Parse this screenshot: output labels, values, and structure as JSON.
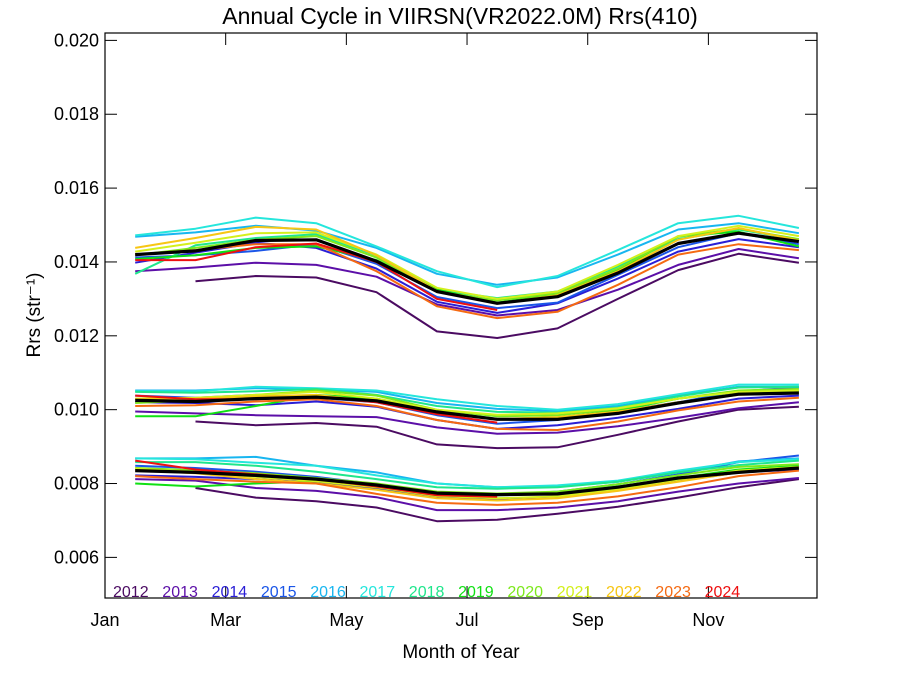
{
  "chart_data": {
    "type": "line",
    "title": "Annual Cycle in VIIRSN(VR2022.0M) Rrs(410)",
    "xlabel": "Month of Year",
    "ylabel": "Rrs (str⁻¹)",
    "xlim": [
      1,
      12.8
    ],
    "ylim": [
      0.0049,
      0.0202
    ],
    "grid": false,
    "legend_position": "bottom-left",
    "x_ticks": [
      {
        "value": 1,
        "label": "Jan"
      },
      {
        "value": 3,
        "label": "Mar"
      },
      {
        "value": 5,
        "label": "May"
      },
      {
        "value": 7,
        "label": "Jul"
      },
      {
        "value": 9,
        "label": "Sep"
      },
      {
        "value": 11,
        "label": "Nov"
      }
    ],
    "y_ticks": [
      {
        "value": 0.006,
        "label": "0.006"
      },
      {
        "value": 0.008,
        "label": "0.008"
      },
      {
        "value": 0.01,
        "label": "0.010"
      },
      {
        "value": 0.012,
        "label": "0.012"
      },
      {
        "value": 0.014,
        "label": "0.014"
      },
      {
        "value": 0.016,
        "label": "0.016"
      },
      {
        "value": 0.018,
        "label": "0.018"
      },
      {
        "value": 0.02,
        "label": "0.020"
      }
    ],
    "months": [
      1.5,
      2.5,
      3.5,
      4.5,
      5.5,
      6.5,
      7.5,
      8.5,
      9.5,
      10.5,
      11.5,
      12.5
    ],
    "series": [
      {
        "name": "2012",
        "color": "#4b0b62",
        "groups": [
          [
            null,
            0.01348,
            0.01362,
            0.01358,
            0.01318,
            0.01212,
            0.01194,
            0.0122,
            0.013,
            0.01378,
            0.01422,
            0.01398
          ],
          [
            null,
            0.00968,
            0.00958,
            0.00964,
            0.00954,
            0.00906,
            0.00896,
            0.00898,
            0.00932,
            0.00968,
            0.01,
            0.01008
          ],
          [
            null,
            0.00788,
            0.00762,
            0.00752,
            0.00735,
            0.00698,
            0.00702,
            0.00718,
            0.00737,
            0.00762,
            0.0079,
            0.00812
          ]
        ]
      },
      {
        "name": "2013",
        "color": "#5c0fa8",
        "groups": [
          [
            0.01375,
            0.01385,
            0.01398,
            0.01392,
            0.0136,
            0.01285,
            0.01255,
            0.0127,
            0.01325,
            0.01392,
            0.01435,
            0.0141
          ],
          [
            0.00995,
            0.0099,
            0.00985,
            0.00982,
            0.0098,
            0.00952,
            0.00935,
            0.00938,
            0.00955,
            0.00978,
            0.01004,
            0.0102
          ],
          [
            0.00812,
            0.00808,
            0.00788,
            0.0078,
            0.00763,
            0.00728,
            0.00728,
            0.00735,
            0.00752,
            0.00778,
            0.008,
            0.00815
          ]
        ]
      },
      {
        "name": "2014",
        "color": "#2a1ed6",
        "groups": [
          [
            0.01398,
            0.01425,
            0.01452,
            0.01438,
            0.01382,
            0.01292,
            0.01262,
            0.01288,
            0.01355,
            0.01428,
            0.01462,
            0.0144
          ],
          [
            0.0102,
            0.01018,
            0.01012,
            0.01022,
            0.01008,
            0.00972,
            0.00948,
            0.00958,
            0.00978,
            0.01002,
            0.0103,
            0.01038
          ],
          [
            0.00822,
            0.00818,
            0.00812,
            0.00802,
            0.00788,
            0.00762,
            0.00757,
            0.00765,
            0.00786,
            0.00806,
            0.0083,
            0.00838
          ]
        ]
      },
      {
        "name": "2015",
        "color": "#1a55e8",
        "groups": [
          [
            0.01412,
            0.01418,
            0.0143,
            0.01448,
            0.01395,
            0.01305,
            0.01275,
            0.0129,
            0.01365,
            0.0144,
            0.01478,
            0.01448
          ],
          [
            0.01038,
            0.01032,
            0.0104,
            0.01032,
            0.0102,
            0.00985,
            0.00962,
            0.00972,
            0.00996,
            0.0102,
            0.0105,
            0.0106
          ],
          [
            0.00848,
            0.00842,
            0.00832,
            0.00818,
            0.00798,
            0.00775,
            0.0077,
            0.00778,
            0.00798,
            0.00825,
            0.00858,
            0.00876
          ]
        ]
      },
      {
        "name": "2016",
        "color": "#18b6f0",
        "groups": [
          [
            0.01468,
            0.0148,
            0.01498,
            0.01485,
            0.01438,
            0.01368,
            0.01338,
            0.01358,
            0.0142,
            0.01488,
            0.01505,
            0.01478
          ],
          [
            0.01052,
            0.01052,
            0.01058,
            0.01056,
            0.01048,
            0.01018,
            0.01002,
            0.00996,
            0.0101,
            0.01038,
            0.01062,
            0.01062
          ],
          [
            0.00868,
            0.00868,
            0.00872,
            0.00848,
            0.0083,
            0.008,
            0.0079,
            0.00792,
            0.00805,
            0.0083,
            0.0086,
            0.00868
          ]
        ]
      },
      {
        "name": "2017",
        "color": "#25e6dc",
        "groups": [
          [
            0.01472,
            0.0149,
            0.0152,
            0.01505,
            0.01442,
            0.01375,
            0.01332,
            0.01362,
            0.01432,
            0.01505,
            0.01525,
            0.01492
          ],
          [
            0.0105,
            0.0105,
            0.01062,
            0.01058,
            0.01052,
            0.01028,
            0.0101,
            0.01,
            0.01015,
            0.01042,
            0.01068,
            0.01068
          ],
          [
            0.00868,
            0.00866,
            0.00856,
            0.00848,
            0.00822,
            0.008,
            0.0079,
            0.00795,
            0.00808,
            0.00835,
            0.00858,
            0.00866
          ]
        ]
      },
      {
        "name": "2018",
        "color": "#1fe68c",
        "groups": [
          [
            0.01368,
            0.01445,
            0.01465,
            0.01475,
            0.01418,
            0.01325,
            0.01302,
            0.0132,
            0.01388,
            0.01462,
            0.01488,
            0.0146
          ],
          [
            0.01048,
            0.01046,
            0.0105,
            0.01056,
            0.0104,
            0.0101,
            0.00994,
            0.00992,
            0.01006,
            0.01036,
            0.0106,
            0.01062
          ],
          [
            0.00858,
            0.00858,
            0.00848,
            0.00832,
            0.00812,
            0.0079,
            0.00786,
            0.0079,
            0.00805,
            0.0083,
            0.0085,
            0.00862
          ]
        ]
      },
      {
        "name": "2019",
        "color": "#10e014",
        "groups": [
          [
            0.01408,
            0.01418,
            0.01438,
            0.01442,
            0.01405,
            0.01325,
            0.0129,
            0.01312,
            0.01378,
            0.0147,
            0.01482,
            0.01442
          ],
          [
            0.00982,
            0.00982,
            0.0101,
            0.0104,
            0.0103,
            0.00995,
            0.00975,
            0.00978,
            0.00998,
            0.0103,
            0.01048,
            0.0105
          ],
          [
            0.008,
            0.00792,
            0.008,
            0.00806,
            0.00792,
            0.00772,
            0.00768,
            0.00773,
            0.00792,
            0.00815,
            0.00838,
            0.00848
          ]
        ]
      },
      {
        "name": "2020",
        "color": "#7de81c",
        "groups": [
          [
            0.01418,
            0.01438,
            0.0146,
            0.0147,
            0.01412,
            0.0132,
            0.01296,
            0.01315,
            0.01382,
            0.01468,
            0.0149,
            0.01462
          ],
          [
            0.01018,
            0.01025,
            0.0104,
            0.01052,
            0.01038,
            0.01,
            0.00982,
            0.00985,
            0.01002,
            0.0103,
            0.01052,
            0.01056
          ],
          [
            0.00842,
            0.00836,
            0.00828,
            0.00815,
            0.008,
            0.00778,
            0.00773,
            0.00778,
            0.00798,
            0.00822,
            0.00845,
            0.00852
          ]
        ]
      },
      {
        "name": "2021",
        "color": "#d4f01c",
        "groups": [
          [
            0.01428,
            0.01452,
            0.01478,
            0.0148,
            0.0142,
            0.0133,
            0.013,
            0.0132,
            0.01392,
            0.0147,
            0.01498,
            0.0147
          ],
          [
            0.0103,
            0.01032,
            0.0104,
            0.01048,
            0.0103,
            0.01,
            0.00986,
            0.0099,
            0.01004,
            0.0103,
            0.01048,
            0.01052
          ],
          [
            0.0084,
            0.00832,
            0.00818,
            0.00806,
            0.0079,
            0.00766,
            0.0076,
            0.00765,
            0.00785,
            0.0081,
            0.00835,
            0.00845
          ]
        ]
      },
      {
        "name": "2022",
        "color": "#f7c614",
        "groups": [
          [
            0.01438,
            0.01465,
            0.01495,
            0.01488,
            0.01418,
            0.01322,
            0.01288,
            0.0131,
            0.01375,
            0.0146,
            0.01492,
            0.01458
          ],
          [
            0.01028,
            0.0103,
            0.01036,
            0.0104,
            0.01022,
            0.0099,
            0.00975,
            0.0098,
            0.00995,
            0.0102,
            0.0104,
            0.01045
          ],
          [
            0.00836,
            0.00828,
            0.00812,
            0.008,
            0.00783,
            0.0076,
            0.00754,
            0.0076,
            0.0078,
            0.00805,
            0.0083,
            0.00842
          ]
        ]
      },
      {
        "name": "2023",
        "color": "#f56a12",
        "groups": [
          [
            0.0142,
            0.01432,
            0.01448,
            0.01448,
            0.01375,
            0.0128,
            0.01248,
            0.01265,
            0.01338,
            0.0142,
            0.01448,
            0.01432
          ],
          [
            0.0101,
            0.01012,
            0.01022,
            0.01028,
            0.0101,
            0.00972,
            0.00948,
            0.00945,
            0.00968,
            0.00998,
            0.01022,
            0.01032
          ],
          [
            0.0082,
            0.00812,
            0.00805,
            0.008,
            0.00772,
            0.00748,
            0.00742,
            0.00748,
            0.00765,
            0.0079,
            0.0082,
            0.00835
          ]
        ]
      },
      {
        "name": "2024",
        "color": "#ee1010",
        "groups": [
          [
            0.01405,
            0.01405,
            0.0144,
            0.0145,
            0.014,
            0.013,
            0.0127,
            null,
            null,
            null,
            null,
            null
          ],
          [
            0.01038,
            0.01028,
            0.01028,
            0.01035,
            0.0102,
            0.00988,
            0.00965,
            null,
            null,
            null,
            null,
            null
          ],
          [
            0.00862,
            0.00838,
            0.00825,
            0.00812,
            0.00792,
            0.00768,
            0.00764,
            null,
            null,
            null,
            null,
            null
          ]
        ]
      }
    ],
    "mean": {
      "color": "#000000",
      "groups": [
        [
          0.0142,
          0.0143,
          0.01458,
          0.0146,
          0.01402,
          0.0132,
          0.01288,
          0.01306,
          0.0137,
          0.0145,
          0.01478,
          0.01455
        ],
        [
          0.01025,
          0.01022,
          0.0103,
          0.01034,
          0.01024,
          0.00994,
          0.00974,
          0.00974,
          0.0099,
          0.01018,
          0.01042,
          0.01045
        ],
        [
          0.00835,
          0.0083,
          0.00822,
          0.00812,
          0.00796,
          0.00774,
          0.0077,
          0.00772,
          0.0079,
          0.00815,
          0.0083,
          0.00842
        ]
      ]
    }
  }
}
